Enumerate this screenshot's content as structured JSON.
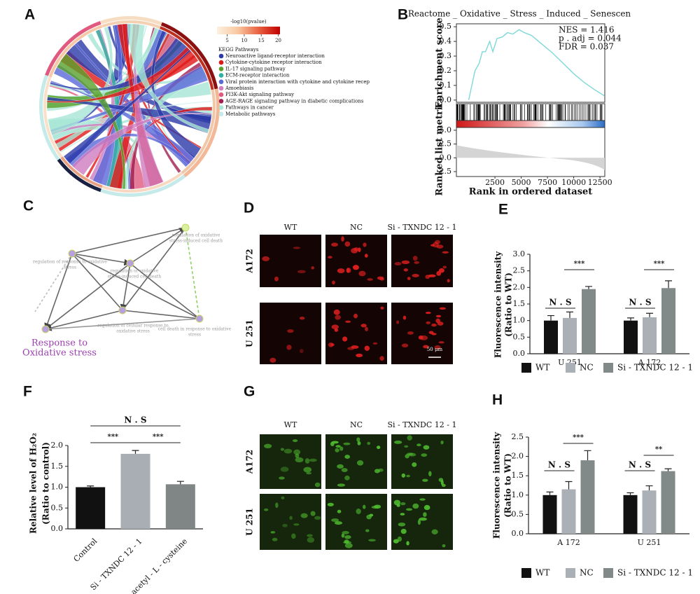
{
  "figure": {
    "panel_labels": [
      "A",
      "B",
      "C",
      "D",
      "E",
      "F",
      "G",
      "H"
    ]
  },
  "chord": {
    "colorbar_title": "-log10(pvalue)",
    "colorbar_ticks": [
      5,
      10,
      15,
      20
    ],
    "colorbar_lim": [
      2,
      20.5
    ],
    "colorbar_colors": [
      "#fdf0e0",
      "#f8c8a0",
      "#e86040",
      "#c00000"
    ],
    "legend_title": "KEGG Pathways",
    "pathways": [
      {
        "name": "Neuroactive ligand-receptor interaction",
        "color": "#2a3aa8"
      },
      {
        "name": "Cytokine-cytokine receptor interaction",
        "color": "#e01818"
      },
      {
        "name": "IL-17 signaling pathway",
        "color": "#58a02a"
      },
      {
        "name": "ECM-receptor interaction",
        "color": "#30b0a0"
      },
      {
        "name": "Viral protein interaction with cytokine and cytokine recep",
        "color": "#5a68d8"
      },
      {
        "name": "Amoebiasis",
        "color": "#d07cc0"
      },
      {
        "name": "PI3K-Akt signaling pathway",
        "color": "#e05a80"
      },
      {
        "name": "AGE-RAGE signaling pathway in diabetic complications",
        "color": "#a01e50"
      },
      {
        "name": "Pathways in cancer",
        "color": "#a6e6d4"
      },
      {
        "name": "Metabolic pathways",
        "color": "#c4eaea"
      }
    ]
  },
  "network": {
    "nodes": [
      {
        "label": [
          "regulation of oxidative",
          "stress-induced cell death"
        ]
      },
      {
        "label": [
          "regulation of response to oxidative",
          "stress"
        ]
      },
      {
        "label": [
          "regulation of oxidative",
          "stress-induced cell death"
        ]
      },
      {
        "label": [
          "regulation of cellular response to",
          "oxidative stress"
        ]
      },
      {
        "label": [
          "cell death in response to oxidative",
          "stress"
        ]
      }
    ],
    "highlight": [
      "Response to",
      "Oxidative stress"
    ]
  },
  "staining_d": {
    "columns": [
      "WT",
      "NC",
      "Si - TXNDC 12 - 1"
    ],
    "rows": [
      "A172",
      "U 251"
    ],
    "scale_bar": "50 μm"
  },
  "staining_g": {
    "columns": [
      "WT",
      "NC",
      "Si - TXNDC 12 - 1"
    ],
    "rows": [
      "A172",
      "U 251"
    ]
  },
  "chart_data": [
    {
      "type": "line",
      "title": "Reactome _ Oxidative _ Stress _ Induced _ Senescen",
      "annotations": [
        "NES = 1.416",
        "p . adj = 0.044",
        "FDR = 0.037"
      ],
      "ylabel": "Enrichment score",
      "xlabel": "Rank in ordered dataset",
      "x": [
        0,
        300,
        600,
        1000,
        1300,
        1600,
        2000,
        2300,
        2700,
        3200,
        3700,
        4200,
        4800,
        5300,
        6000,
        7000,
        8000,
        9000,
        10000,
        11000,
        12000,
        12900
      ],
      "values": [
        0,
        0.1,
        0.2,
        0.25,
        0.33,
        0.33,
        0.4,
        0.33,
        0.42,
        0.43,
        0.46,
        0.45,
        0.48,
        0.46,
        0.44,
        0.38,
        0.32,
        0.25,
        0.18,
        0.12,
        0.07,
        0.03
      ],
      "color": "#7fd8d8",
      "xlim": [
        -1170,
        12960
      ],
      "xticks": [
        2500,
        5000,
        7500,
        10000,
        12500
      ],
      "ylim": [
        -0.015,
        0.52
      ],
      "yticks": [
        {
          "value": 0,
          "label": "0.0"
        },
        {
          "value": 0.1,
          "label": "0.1"
        },
        {
          "value": 0.2,
          "label": "0.2"
        },
        {
          "value": 0.3,
          "label": "0.3"
        },
        {
          "value": 0.4,
          "label": "0.4"
        },
        {
          "value": 0.5,
          "label": "0.5"
        }
      ],
      "metric_ylabel": "Ranked list metric",
      "metric_ylim": [
        -3.39,
        5.5
      ],
      "metric_yticks": [
        {
          "value": 5,
          "label": "5.0"
        },
        {
          "value": 2.5,
          "label": "2.5"
        },
        {
          "value": 0,
          "label": "0.0"
        },
        {
          "value": -2.5,
          "label": "-2.5"
        }
      ]
    },
    {
      "type": "bar",
      "ylabel": [
        "Fluorescence intensity",
        "(Ratio to WT)"
      ],
      "categories": [
        "U 251",
        "A 172"
      ],
      "series": [
        {
          "name": "WT",
          "color": "#111111",
          "values": [
            1.0,
            1.0
          ],
          "errors": [
            0.15,
            0.08
          ]
        },
        {
          "name": "NC",
          "color": "#aab0b6",
          "values": [
            1.08,
            1.1
          ],
          "errors": [
            0.18,
            0.12
          ]
        },
        {
          "name": "Si - TXNDC 12 - 1",
          "color": "#828989",
          "values": [
            1.95,
            1.98
          ],
          "errors": [
            0.08,
            0.22
          ]
        }
      ],
      "ylim": [
        0,
        3
      ],
      "yticks": [
        {
          "value": 0,
          "label": "0.0"
        },
        {
          "value": 0.5,
          "label": "0.5"
        },
        {
          "value": 1,
          "label": "1.0"
        },
        {
          "value": 1.5,
          "label": "1.5"
        },
        {
          "value": 2,
          "label": "2.0"
        },
        {
          "value": 2.5,
          "label": "2.5"
        },
        {
          "value": 3,
          "label": "3.0"
        }
      ],
      "significance": [
        "N . S",
        "***",
        "N . S",
        "***"
      ]
    },
    {
      "type": "bar",
      "ylabel": [
        "Relative level of H₂O₂",
        "(Ratio to control)"
      ],
      "categories": [
        "Control",
        "Si - TXNDC 12 - 1",
        "N - acetyl - L - cysteine"
      ],
      "values": [
        1.0,
        1.8,
        1.07
      ],
      "errors": [
        0.03,
        0.08,
        0.07
      ],
      "colors": [
        "#111111",
        "#a8aeb4",
        "#808686"
      ],
      "ylim": [
        0,
        2
      ],
      "yticks": [
        {
          "value": 0,
          "label": "0.0"
        },
        {
          "value": 0.5,
          "label": "0.5"
        },
        {
          "value": 1,
          "label": "1.0"
        },
        {
          "value": 1.5,
          "label": "1.5"
        },
        {
          "value": 2,
          "label": "2.0"
        }
      ],
      "significance": [
        "N . S",
        "***",
        "***"
      ]
    },
    {
      "type": "bar",
      "ylabel": [
        "Fluorescence intensity",
        "(Ratio to WT)"
      ],
      "categories": [
        "A 172",
        "U 251"
      ],
      "series": [
        {
          "name": "WT",
          "color": "#111111",
          "values": [
            1.0,
            1.0
          ],
          "errors": [
            0.08,
            0.06
          ]
        },
        {
          "name": "NC",
          "color": "#aab0b6",
          "values": [
            1.15,
            1.12
          ],
          "errors": [
            0.2,
            0.12
          ]
        },
        {
          "name": "Si - TXNDC 12 - 1",
          "color": "#828989",
          "values": [
            1.9,
            1.62
          ],
          "errors": [
            0.25,
            0.06
          ]
        }
      ],
      "ylim": [
        0,
        2.5
      ],
      "yticks": [
        {
          "value": 0,
          "label": "0.0"
        },
        {
          "value": 0.5,
          "label": "0.5"
        },
        {
          "value": 1,
          "label": "1.0"
        },
        {
          "value": 1.5,
          "label": "1.5"
        },
        {
          "value": 2,
          "label": "2.0"
        },
        {
          "value": 2.5,
          "label": "2.5"
        }
      ],
      "significance": [
        "N . S",
        "***",
        "N . S",
        "**"
      ]
    }
  ]
}
